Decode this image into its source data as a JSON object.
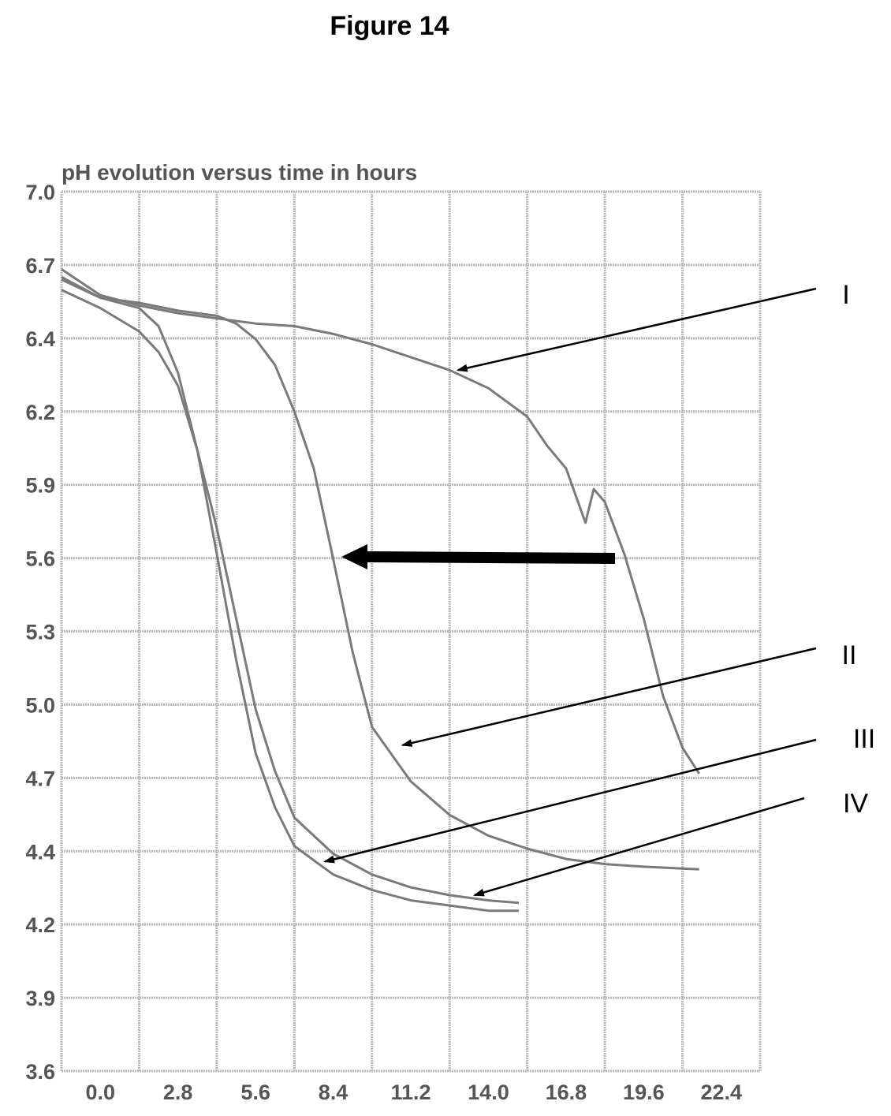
{
  "figure": {
    "title": "Figure 14"
  },
  "chart_data": {
    "type": "line",
    "title": "pH evolution versus time in hours",
    "xlabel": "",
    "ylabel": "",
    "x_ticks": [
      "0.0",
      "2.8",
      "5.6",
      "8.4",
      "11.2",
      "14.0",
      "16.8",
      "19.6",
      "22.4"
    ],
    "y_ticks": [
      "7.0",
      "6.7",
      "6.4",
      "6.2",
      "5.9",
      "5.6",
      "5.3",
      "5.0",
      "4.7",
      "4.4",
      "4.2",
      "3.9",
      "3.6"
    ],
    "xlim": [
      0,
      25.2
    ],
    "ylim": [
      3.6,
      7.0
    ],
    "grid": true,
    "series": [
      {
        "name": "I",
        "color": "#7a7a7a",
        "x": [
          0,
          1.4,
          2.8,
          4.2,
          5.6,
          7.0,
          8.4,
          9.8,
          11.2,
          12.6,
          14.0,
          15.4,
          16.8,
          17.5,
          18.2,
          18.9,
          19.2,
          19.6,
          20.3,
          21.0,
          21.7,
          22.4,
          23.0
        ],
        "y": [
          6.7,
          6.6,
          6.56,
          6.53,
          6.51,
          6.49,
          6.48,
          6.45,
          6.41,
          6.36,
          6.31,
          6.24,
          6.13,
          6.02,
          5.93,
          5.72,
          5.85,
          5.8,
          5.6,
          5.35,
          5.05,
          4.85,
          4.75
        ]
      },
      {
        "name": "II",
        "color": "#7a7a7a",
        "x": [
          0,
          1.4,
          2.8,
          4.2,
          5.6,
          6.3,
          7.0,
          7.7,
          8.4,
          9.1,
          9.8,
          10.5,
          11.2,
          12.6,
          14.0,
          15.4,
          16.8,
          18.2,
          19.6,
          21.0,
          23.0
        ],
        "y": [
          6.67,
          6.59,
          6.57,
          6.54,
          6.52,
          6.49,
          6.43,
          6.33,
          6.15,
          5.93,
          5.58,
          5.22,
          4.93,
          4.72,
          4.59,
          4.51,
          4.46,
          4.42,
          4.4,
          4.39,
          4.38
        ]
      },
      {
        "name": "III",
        "color": "#7a7a7a",
        "x": [
          0,
          1.4,
          2.8,
          3.5,
          4.2,
          4.9,
          5.6,
          6.3,
          7.0,
          7.7,
          8.4,
          9.8,
          11.2,
          12.6,
          14.0,
          15.4,
          16.5
        ],
        "y": [
          6.62,
          6.55,
          6.46,
          6.38,
          6.25,
          6.0,
          5.6,
          5.19,
          4.83,
          4.62,
          4.47,
          4.36,
          4.3,
          4.26,
          4.24,
          4.22,
          4.22
        ]
      },
      {
        "name": "IV",
        "color": "#7a7a7a",
        "x": [
          0,
          1.4,
          2.8,
          3.5,
          4.2,
          4.9,
          5.6,
          6.3,
          7.0,
          7.7,
          8.4,
          9.8,
          11.2,
          12.6,
          14.0,
          15.4,
          16.5
        ],
        "y": [
          6.66,
          6.59,
          6.55,
          6.48,
          6.3,
          6.0,
          5.7,
          5.35,
          5.0,
          4.76,
          4.58,
          4.44,
          4.36,
          4.31,
          4.28,
          4.26,
          4.25
        ]
      }
    ],
    "annotations": [
      {
        "label": "I",
        "target": {
          "x": 14.3,
          "y": 6.31
        }
      },
      {
        "label": "II",
        "target": {
          "x": 12.3,
          "y": 4.86
        }
      },
      {
        "label": "III",
        "target": {
          "x": 9.5,
          "y": 4.41
        }
      },
      {
        "label": "IV",
        "target": {
          "x": 14.9,
          "y": 4.28
        }
      }
    ],
    "shift_arrow": {
      "from": {
        "x": 19.9,
        "y": 5.6
      },
      "to": {
        "x": 10.0,
        "y": 5.6
      }
    }
  }
}
